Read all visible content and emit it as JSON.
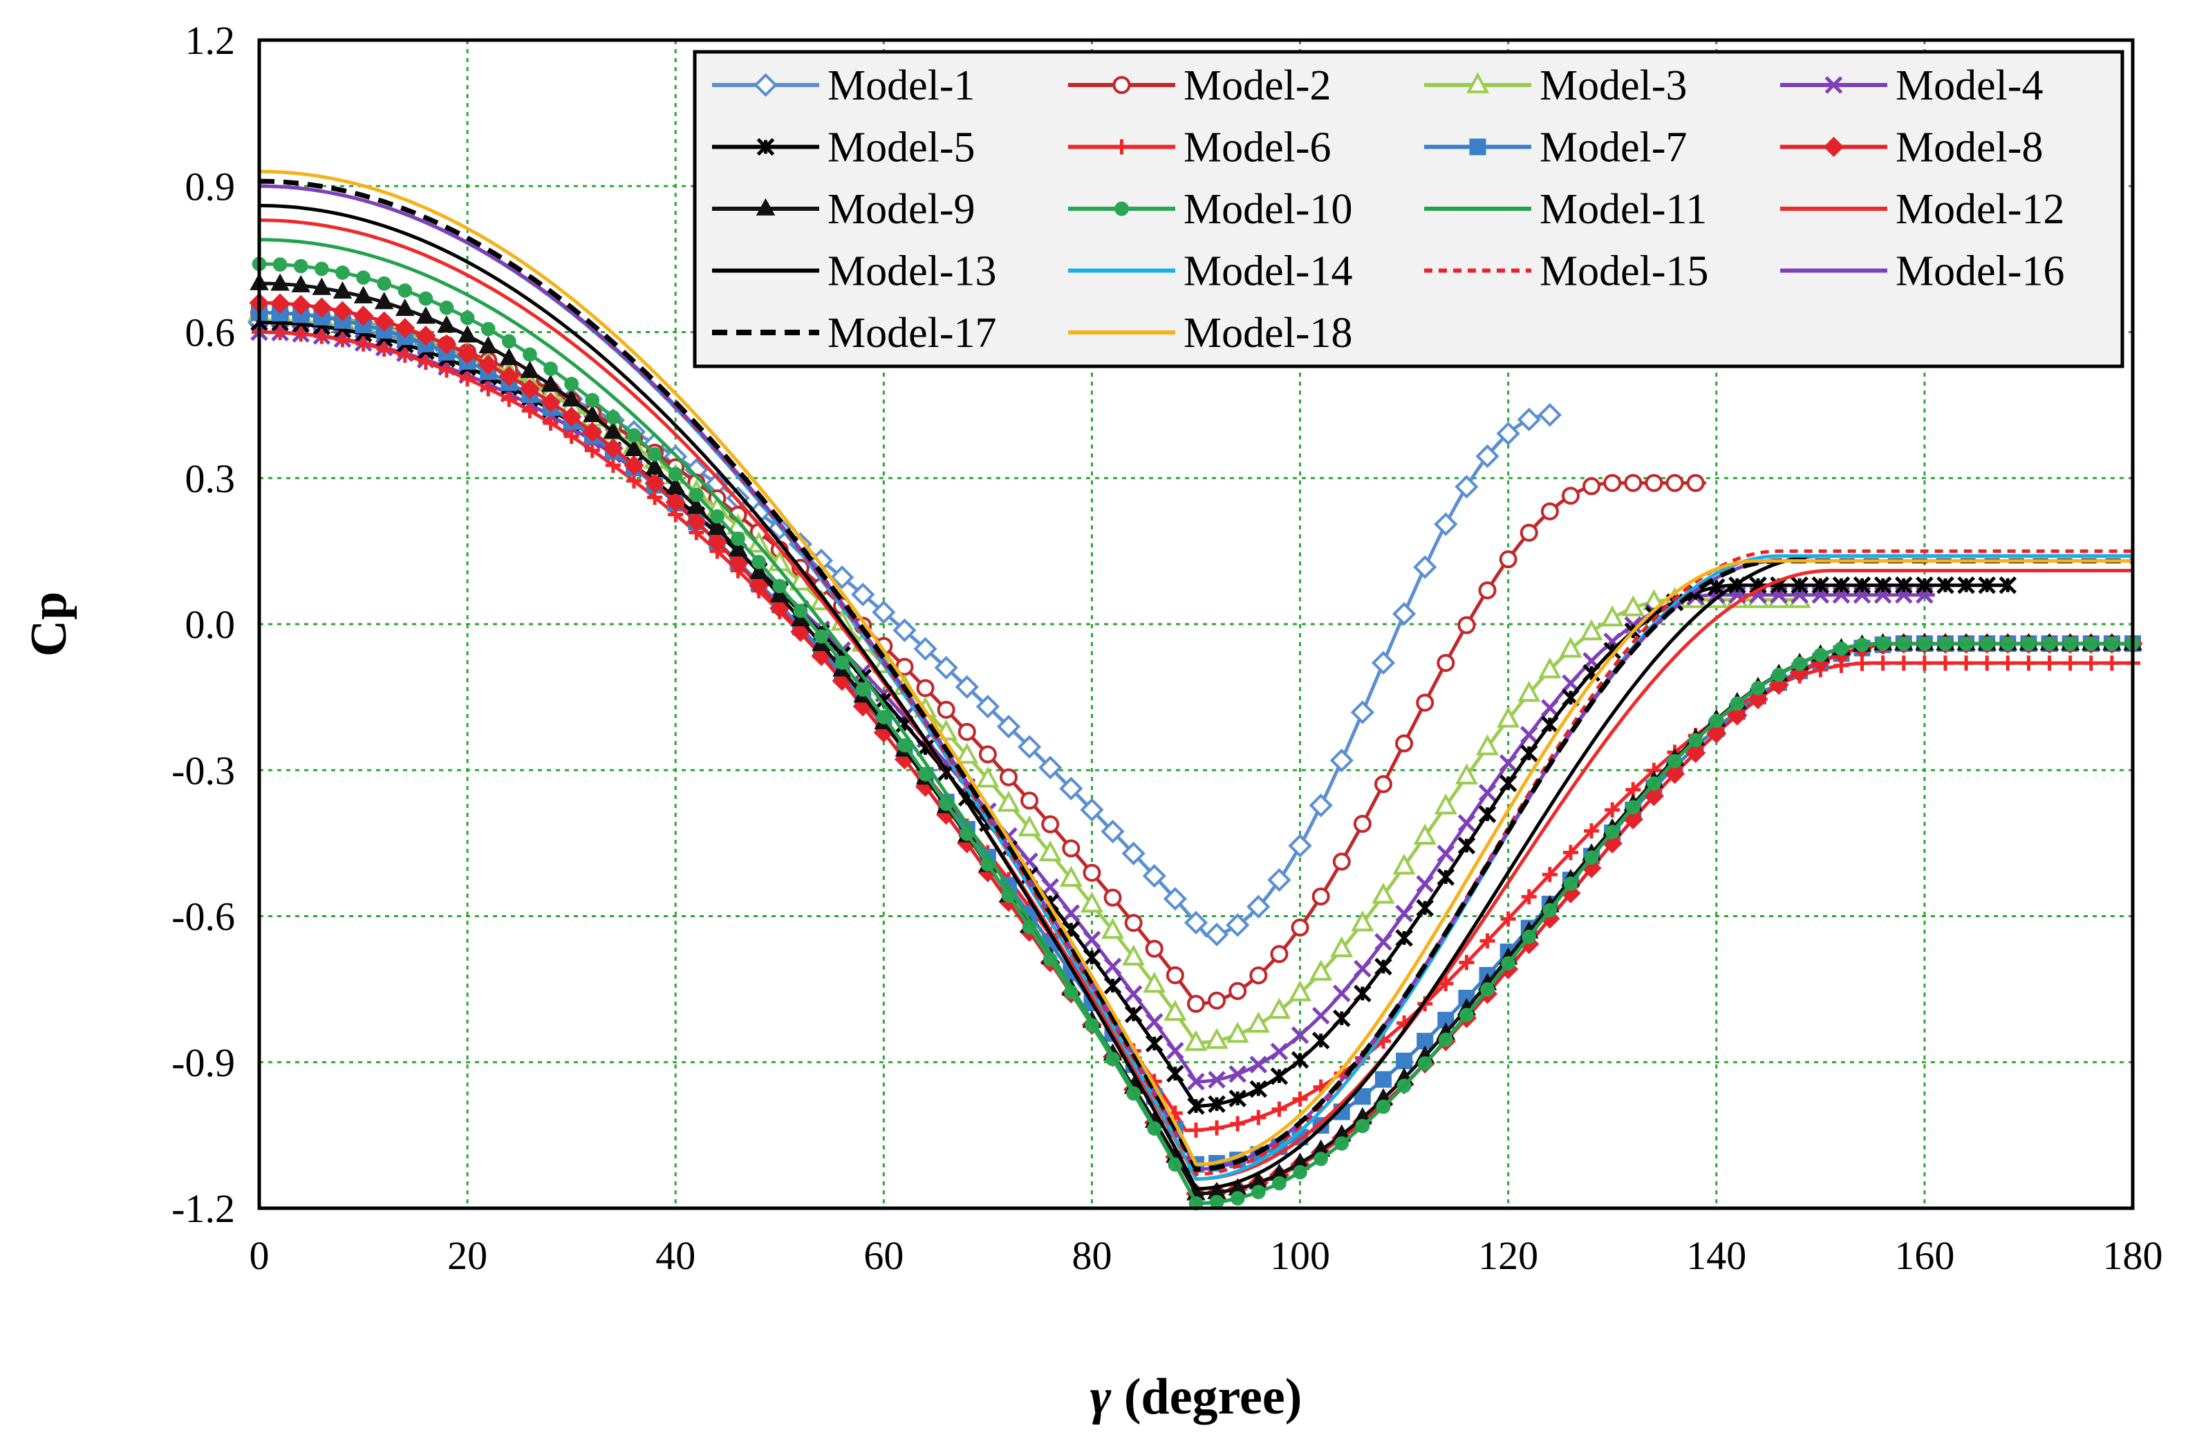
{
  "chart_data": {
    "type": "line",
    "title": "",
    "xlabel_symbol": "γ",
    "xlabel_rest": " (degree)",
    "ylabel": "Cp",
    "xlim": [
      0,
      180
    ],
    "ylim": [
      -1.2,
      1.2
    ],
    "xticks": [
      "0",
      "20",
      "40",
      "60",
      "80",
      "100",
      "120",
      "140",
      "160",
      "180"
    ],
    "yticks": [
      "1.2",
      "0.9",
      "0.6",
      "0.3",
      "0.0",
      "-0.3",
      "-0.6",
      "-0.9",
      "-1.2"
    ],
    "grid": true,
    "legend_position": "top-right",
    "series": [
      {
        "name": "Model-1",
        "color": "#5b8fd1",
        "marker": "diamond",
        "dash": "",
        "xmax": 124,
        "params": {
          "a": 0.62,
          "m": -0.64,
          "g0": 91,
          "g1": 124,
          "w": 0.95,
          "e": 0.43
        }
      },
      {
        "name": "Model-2",
        "color": "#c0282b",
        "marker": "circle",
        "dash": "",
        "xmax": 139,
        "params": {
          "a": 0.64,
          "m": -0.78,
          "g0": 90,
          "g1": 130,
          "w": 0.95,
          "e": 0.29
        }
      },
      {
        "name": "Model-3",
        "color": "#9bcc52",
        "marker": "triangle",
        "dash": "",
        "xmax": 148,
        "params": {
          "a": 0.64,
          "m": -0.86,
          "g0": 90,
          "g1": 136,
          "w": 0.95,
          "e": 0.05
        }
      },
      {
        "name": "Model-4",
        "color": "#7f3fb8",
        "marker": "x",
        "dash": "",
        "xmax": 161,
        "params": {
          "a": 0.6,
          "m": -0.94,
          "g0": 90,
          "g1": 140,
          "w": 0.95,
          "e": 0.06
        }
      },
      {
        "name": "Model-5",
        "color": "#000000",
        "marker": "star",
        "dash": "",
        "xmax": 168,
        "params": {
          "a": 0.62,
          "m": -0.99,
          "g0": 90,
          "g1": 142,
          "w": 0.95,
          "e": 0.08
        }
      },
      {
        "name": "Model-6",
        "color": "#f0262a",
        "marker": "plus",
        "dash": "",
        "xmax": 180,
        "params": {
          "a": 0.6,
          "m": -1.04,
          "g0": 89,
          "g1": 155,
          "w": 0.95,
          "e": -0.08
        }
      },
      {
        "name": "Model-7",
        "color": "#3b7fc9",
        "marker": "square",
        "dash": "",
        "xmax": 180,
        "params": {
          "a": 0.64,
          "m": -1.11,
          "g0": 90,
          "g1": 158,
          "w": 0.95,
          "e": -0.04
        }
      },
      {
        "name": "Model-8",
        "color": "#e4222a",
        "marker": "diamond-filled",
        "dash": "",
        "xmax": 180,
        "params": {
          "a": 0.66,
          "m": -1.17,
          "g0": 90,
          "g1": 158,
          "w": 0.95,
          "e": -0.04
        }
      },
      {
        "name": "Model-9",
        "color": "#111111",
        "marker": "triangle-filled",
        "dash": "",
        "xmax": 180,
        "params": {
          "a": 0.7,
          "m": -1.17,
          "g0": 90,
          "g1": 156,
          "w": 0.95,
          "e": -0.04
        }
      },
      {
        "name": "Model-10",
        "color": "#2ba553",
        "marker": "dot",
        "dash": "",
        "xmax": 180,
        "params": {
          "a": 0.74,
          "m": -1.19,
          "g0": 90,
          "g1": 156,
          "w": 0.95,
          "e": -0.04
        }
      },
      {
        "name": "Model-11",
        "color": "#23a24e",
        "marker": "none",
        "dash": "",
        "xmax": 180,
        "params": {
          "a": 0.79,
          "m": -1.19,
          "g0": 90,
          "g1": 156,
          "w": 0.95,
          "e": -0.04
        }
      },
      {
        "name": "Model-12",
        "color": "#ef2a2a",
        "marker": "none",
        "dash": "",
        "xmax": 180,
        "params": {
          "a": 0.83,
          "m": -1.14,
          "g0": 90,
          "g1": 151,
          "w": 0.95,
          "e": 0.11
        }
      },
      {
        "name": "Model-13",
        "color": "#000000",
        "marker": "none",
        "dash": "",
        "xmax": 180,
        "params": {
          "a": 0.86,
          "m": -1.16,
          "g0": 90,
          "g1": 150,
          "w": 0.95,
          "e": 0.14
        }
      },
      {
        "name": "Model-14",
        "color": "#1aaee3",
        "marker": "none",
        "dash": "",
        "xmax": 180,
        "params": {
          "a": 0.9,
          "m": -1.14,
          "g0": 90,
          "g1": 146,
          "w": 0.95,
          "e": 0.14
        }
      },
      {
        "name": "Model-15",
        "color": "#e8232a",
        "marker": "none",
        "dash": "12,9",
        "xmax": 180,
        "params": {
          "a": 0.9,
          "m": -1.13,
          "g0": 90,
          "g1": 146,
          "w": 0.95,
          "e": 0.15
        }
      },
      {
        "name": "Model-16",
        "color": "#7f3fb8",
        "marker": "none",
        "dash": "",
        "xmax": 180,
        "params": {
          "a": 0.9,
          "m": -1.12,
          "g0": 90,
          "g1": 146,
          "w": 0.95,
          "e": 0.13
        }
      },
      {
        "name": "Model-17",
        "color": "#000000",
        "marker": "none",
        "dash": "22,13",
        "xmax": 180,
        "params": {
          "a": 0.91,
          "m": -1.12,
          "g0": 90,
          "g1": 146,
          "w": 0.95,
          "e": 0.13
        }
      },
      {
        "name": "Model-18",
        "color": "#f6b21a",
        "marker": "none",
        "dash": "",
        "xmax": 180,
        "params": {
          "a": 0.93,
          "m": -1.11,
          "g0": 90,
          "g1": 144,
          "w": 0.95,
          "e": 0.13
        }
      }
    ]
  }
}
